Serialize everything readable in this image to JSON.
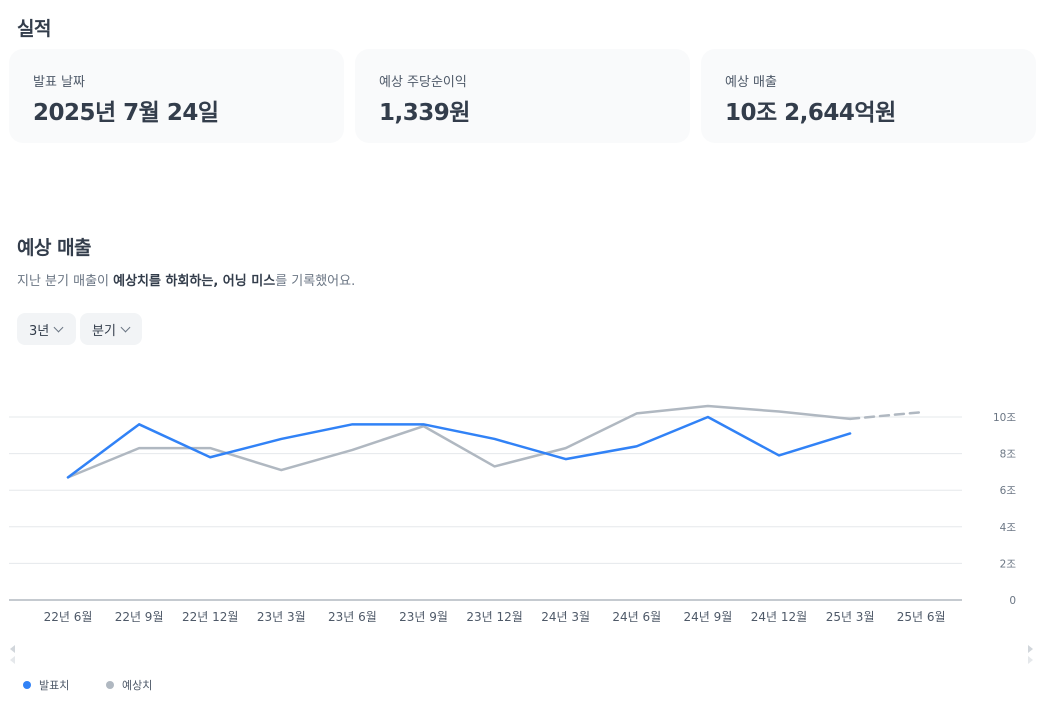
{
  "results": {
    "title": "실적",
    "cards": [
      {
        "label": "발표 날짜",
        "value": "2025년 7월 24일"
      },
      {
        "label": "예상 주당순이익",
        "value": "1,339원"
      },
      {
        "label": "예상 매출",
        "value": "10조 2,644억원"
      }
    ]
  },
  "revenue": {
    "title": "예상 매출",
    "description_parts": [
      "지난 분기 매출이 ",
      "예상치를 하회하는,",
      " 어닝 미스",
      "를 기록했어요."
    ],
    "filters": {
      "period": "3년",
      "unit": "분기"
    }
  },
  "legend": {
    "reported": "발표치",
    "estimate": "예상치"
  },
  "colors": {
    "reported": "#3182f6",
    "estimate": "#b0b8c1",
    "grid": "#e5e8eb"
  },
  "icons": {
    "scroll_left": "triangle-left-icon",
    "scroll_right": "triangle-right-icon",
    "dropdown": "chevron-down-icon"
  },
  "chart_data": {
    "type": "line",
    "categories": [
      "22년 6월",
      "22년 9월",
      "22년 12월",
      "23년 3월",
      "23년 6월",
      "23년 9월",
      "23년 12월",
      "24년 3월",
      "24년 6월",
      "24년 9월",
      "24년 12월",
      "25년 3월",
      "25년 6월"
    ],
    "y_ticks": [
      0,
      2,
      4,
      6,
      8,
      10
    ],
    "y_tick_labels": [
      "0",
      "2조",
      "4조",
      "6조",
      "8조",
      "10조"
    ],
    "ylim": [
      0,
      10
    ],
    "y_unit": "조",
    "grid": true,
    "legend_position": "bottom-left",
    "series": [
      {
        "name": "발표치",
        "key": "reported",
        "values": [
          6.7,
          9.6,
          7.8,
          8.8,
          9.6,
          9.6,
          8.8,
          7.7,
          8.4,
          10.0,
          7.9,
          9.1,
          null
        ]
      },
      {
        "name": "예상치",
        "key": "estimate",
        "values": [
          6.7,
          8.3,
          8.3,
          7.1,
          8.2,
          9.5,
          7.3,
          8.3,
          10.2,
          10.6,
          10.3,
          9.9,
          10.26
        ],
        "projected_from_index": 11
      }
    ]
  }
}
